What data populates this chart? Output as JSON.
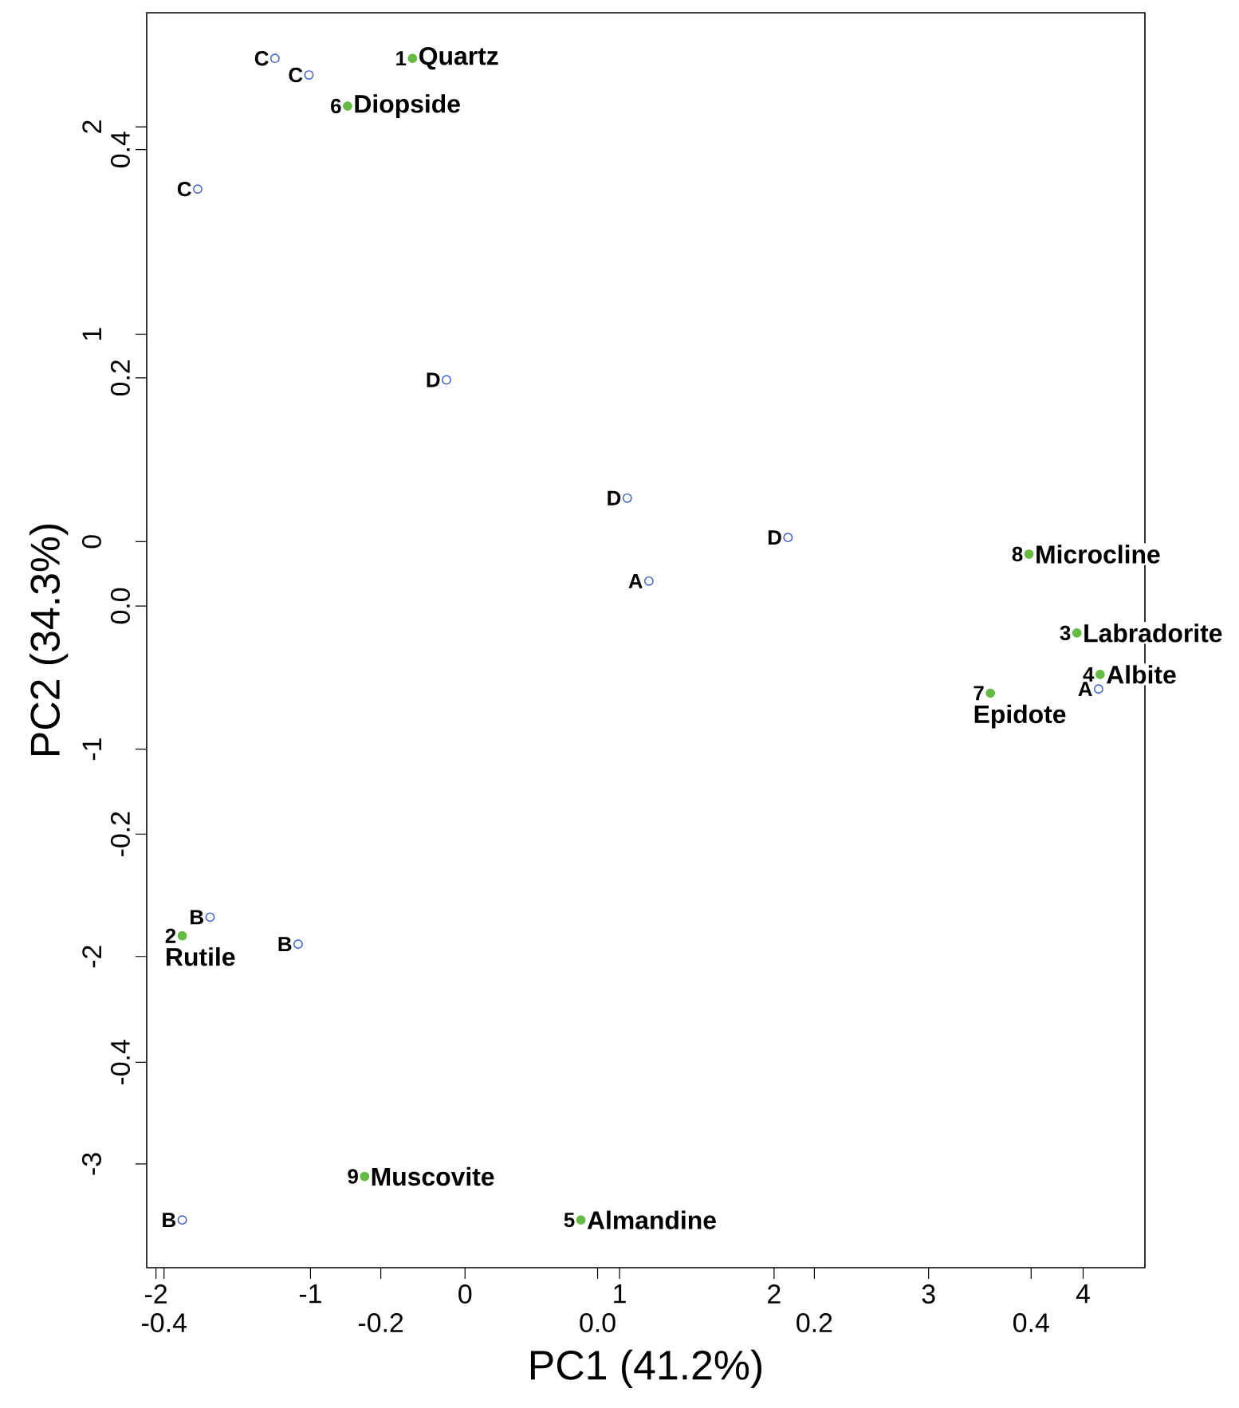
{
  "chart_data": {
    "type": "scatter",
    "xlabel": "PC1 (41.2%)",
    "ylabel": "PC2 (34.3%)",
    "xlim": [
      -2.06,
      4.4
    ],
    "ylim": [
      -3.5,
      2.55
    ],
    "xticks": [
      -2,
      -1,
      0,
      1,
      2,
      3,
      4
    ],
    "yticks": [
      -3,
      -2,
      -1,
      0,
      1,
      2
    ],
    "x2lim": [
      -0.416,
      0.505
    ],
    "x2ticks": [
      -0.4,
      -0.2,
      {
        "value": 0,
        "label": "0.0"
      },
      0.2,
      0.4
    ],
    "y2lim": [
      -0.58,
      0.52
    ],
    "y2ticks": [
      -0.4,
      -0.2,
      {
        "value": 0,
        "label": "0.0"
      },
      0.2,
      0.4
    ],
    "marker": "circle",
    "series": [
      {
        "color": "#3355cc",
        "x": [
          -1.23,
          -1.01,
          -1.73,
          -0.12,
          1.05,
          2.09,
          1.19,
          4.1,
          -1.65,
          -1.08,
          -1.83
        ],
        "values": [
          2.33,
          2.25,
          1.7,
          0.78,
          0.21,
          0.02,
          -0.19,
          -0.71,
          -1.81,
          -1.94,
          -3.27
        ]
      },
      {
        "color": "#66bb44",
        "x": [
          -0.34,
          -0.76,
          3.65,
          3.96,
          4.11,
          3.4,
          -1.83,
          -0.65,
          0.75
        ],
        "values": [
          2.33,
          2.1,
          -0.06,
          -0.44,
          -0.64,
          -0.73,
          -1.9,
          -3.06,
          -3.27
        ]
      }
    ],
    "annotations": [
      {
        "text": "C",
        "x": -1.23,
        "y": 2.33
      },
      {
        "text": "C",
        "x": -1.01,
        "y": 2.25
      },
      {
        "text": "C",
        "x": -1.73,
        "y": 1.7
      },
      {
        "text": "D",
        "x": -0.12,
        "y": 0.78
      },
      {
        "text": "D",
        "x": 1.05,
        "y": 0.21
      },
      {
        "text": "D",
        "x": 2.09,
        "y": 0.02
      },
      {
        "text": "A",
        "x": 1.19,
        "y": -0.19
      },
      {
        "text": "A",
        "x": 4.1,
        "y": -0.71
      },
      {
        "text": "B",
        "x": -1.65,
        "y": -1.81
      },
      {
        "text": "B",
        "x": -1.08,
        "y": -1.94
      },
      {
        "text": "B",
        "x": -1.83,
        "y": -3.27
      },
      {
        "text": "1",
        "x": -0.34,
        "y": 2.33
      },
      {
        "text": "Quartz",
        "x": -0.34,
        "y": 2.33
      },
      {
        "text": "6",
        "x": -0.76,
        "y": 2.1
      },
      {
        "text": "Diopside",
        "x": -0.76,
        "y": 2.1
      },
      {
        "text": "8",
        "x": 3.65,
        "y": -0.06
      },
      {
        "text": "Microcline",
        "x": 3.65,
        "y": -0.06
      },
      {
        "text": "3",
        "x": 3.96,
        "y": -0.44
      },
      {
        "text": "Labradorite",
        "x": 3.96,
        "y": -0.44
      },
      {
        "text": "4",
        "x": 4.11,
        "y": -0.64
      },
      {
        "text": "Albite",
        "x": 4.11,
        "y": -0.64
      },
      {
        "text": "7",
        "x": 3.4,
        "y": -0.73
      },
      {
        "text": "Epidote",
        "x": 3.4,
        "y": -0.73
      },
      {
        "text": "2",
        "x": -1.83,
        "y": -1.9
      },
      {
        "text": "Rutile",
        "x": -1.83,
        "y": -1.9
      },
      {
        "text": "9",
        "x": -0.65,
        "y": -3.06
      },
      {
        "text": "Muscovite",
        "x": -0.65,
        "y": -3.06
      },
      {
        "text": "5",
        "x": 0.75,
        "y": -3.27
      },
      {
        "text": "Almandine",
        "x": 0.75,
        "y": -3.27
      }
    ]
  }
}
